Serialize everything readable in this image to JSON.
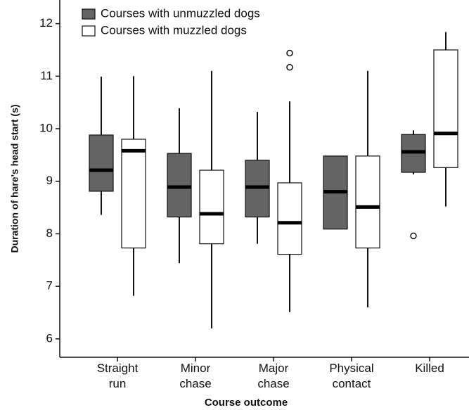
{
  "chart_data": {
    "type": "box",
    "xlabel": "Course outcome",
    "ylabel": "Duration of hare's head start (s)",
    "categories": [
      [
        "Straight",
        "run"
      ],
      [
        "Minor",
        "chase"
      ],
      [
        "Major",
        "chase"
      ],
      [
        "Physical",
        "contact"
      ],
      [
        "Killed"
      ]
    ],
    "ylim": [
      5.65,
      12.45
    ],
    "yticks": [
      6,
      7,
      8,
      9,
      10,
      11,
      12
    ],
    "legend": "upper left",
    "series": [
      {
        "name": "Courses with unmuzzled dogs",
        "color": "#646464",
        "values": [
          {
            "min": 8.36,
            "q1": 8.81,
            "median": 9.21,
            "q3": 9.88,
            "max": 10.99
          },
          {
            "min": 7.44,
            "q1": 8.32,
            "median": 8.89,
            "q3": 9.53,
            "max": 10.39
          },
          {
            "min": 7.81,
            "q1": 8.32,
            "median": 8.89,
            "q3": 9.4,
            "max": 10.32
          },
          {
            "min": 8.09,
            "q1": 8.09,
            "median": 8.8,
            "q3": 9.48,
            "max": 9.48
          },
          {
            "min": 9.13,
            "q1": 9.17,
            "median": 9.56,
            "q3": 9.89,
            "max": 9.97,
            "outliers": [
              7.96
            ]
          }
        ]
      },
      {
        "name": "Courses with muzzled dogs",
        "color": "#ffffff",
        "values": [
          {
            "min": 6.82,
            "q1": 7.73,
            "median": 9.58,
            "q3": 9.8,
            "max": 11.0
          },
          {
            "min": 6.2,
            "q1": 7.81,
            "median": 8.38,
            "q3": 9.21,
            "max": 11.1
          },
          {
            "min": 6.51,
            "q1": 7.61,
            "median": 8.21,
            "q3": 8.97,
            "max": 10.52,
            "outliers": [
              11.17,
              11.44
            ]
          },
          {
            "min": 6.6,
            "q1": 7.73,
            "median": 8.51,
            "q3": 9.48,
            "max": 11.1
          },
          {
            "min": 8.52,
            "q1": 9.26,
            "median": 9.91,
            "q3": 11.5,
            "max": 11.84
          }
        ]
      }
    ]
  }
}
